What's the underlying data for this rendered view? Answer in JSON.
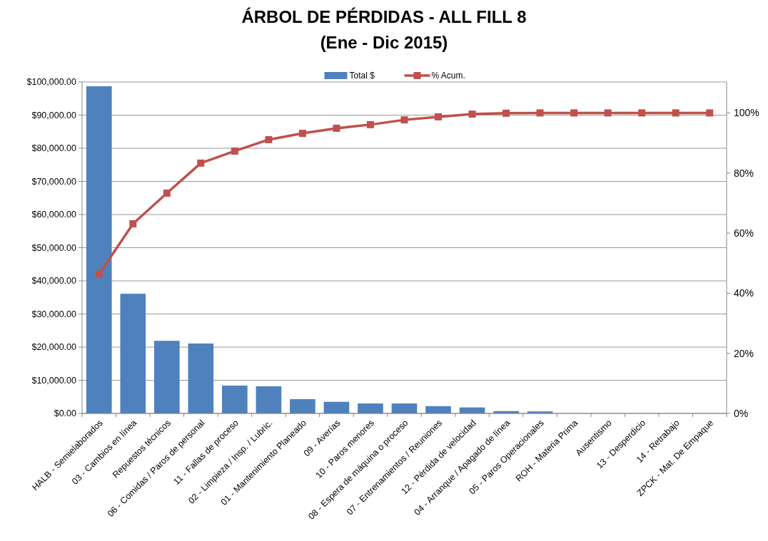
{
  "chart_data": {
    "type": "bar",
    "title": "ÁRBOL DE PÉRDIDAS - ALL FILL 8",
    "subtitle": "(Ene - Dic 2015)",
    "categories": [
      "HALB - Semielaborados",
      "03 - Cambios en línea",
      "Repuestos técnicos",
      "06 - Comidas / Paros de personal",
      "11 - Fallas de proceso",
      "02 - Limpieza / Insp. / Lubric.",
      "01 - Mantenimiento Planeado",
      "09 - Averías",
      "10 - Paros menores",
      "08 - Espera de máquina o proceso",
      "07 - Entrenamientos / Reuniones",
      "12 - Pérdida de velocidad",
      "04 - Arranque / Apagado de línea",
      "05 - Paros Operacionales",
      "ROH - Materia Prima",
      "Ausentismo",
      "13 - Desperdicio",
      "14 - Retrabajo",
      "ZPCK - Mat. De Empaque"
    ],
    "series": [
      {
        "name": "Total $",
        "color": "#4f81bd",
        "values": [
          98700,
          36100,
          21900,
          21100,
          8400,
          8200,
          4300,
          3500,
          3000,
          3000,
          2200,
          1800,
          700,
          600,
          0,
          0,
          0,
          0,
          0
        ]
      },
      {
        "name": "% Acum.",
        "type": "line",
        "axis": "y2",
        "color": "#c0504d",
        "marker": "square",
        "values": [
          46.3,
          63.1,
          73.3,
          83.3,
          87.3,
          91.1,
          93.2,
          94.9,
          96.1,
          97.7,
          98.7,
          99.6,
          99.9,
          100,
          100,
          100,
          100,
          100,
          100
        ]
      }
    ],
    "ylim": [
      0,
      100000
    ],
    "yticks": [
      {
        "value": 0,
        "label": "$0.00"
      },
      {
        "value": 10000,
        "label": "$10,000.00"
      },
      {
        "value": 20000,
        "label": "$20,000.00"
      },
      {
        "value": 30000,
        "label": "$30,000.00"
      },
      {
        "value": 40000,
        "label": "$40,000.00"
      },
      {
        "value": 50000,
        "label": "$50,000.00"
      },
      {
        "value": 60000,
        "label": "$60,000.00"
      },
      {
        "value": 70000,
        "label": "$70,000.00"
      },
      {
        "value": 80000,
        "label": "$80,000.00"
      },
      {
        "value": 90000,
        "label": "$90,000.00"
      },
      {
        "value": 100000,
        "label": "$100,000.00"
      }
    ],
    "y2lim": [
      0,
      110.3
    ],
    "y2ticks": [
      {
        "value": 0,
        "label": "0%"
      },
      {
        "value": 20,
        "label": "20%"
      },
      {
        "value": 40,
        "label": "40%"
      },
      {
        "value": 60,
        "label": "60%"
      },
      {
        "value": 80,
        "label": "80%"
      },
      {
        "value": 100,
        "label": "100%"
      }
    ],
    "grid": "y",
    "legend": "top"
  }
}
